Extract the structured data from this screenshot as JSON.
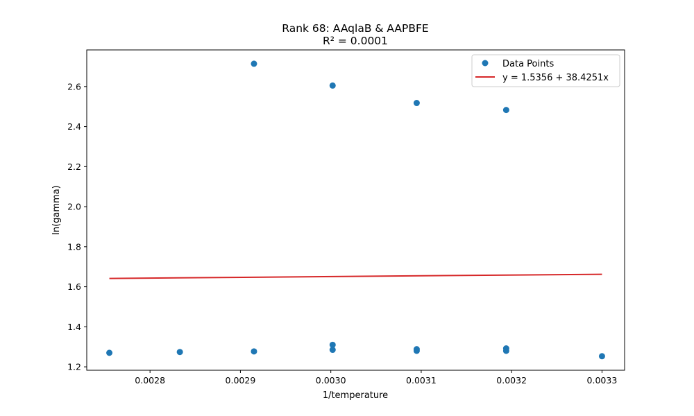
{
  "chart_data": {
    "type": "scatter",
    "title": "Rank 68: AAqlaB & AAPBFE",
    "subtitle": "R² = 0.0001",
    "xlabel": "1/temperature",
    "ylabel": "ln(gamma)",
    "xlim": [
      0.00273,
      0.003325
    ],
    "ylim": [
      1.183,
      2.783
    ],
    "xticks": [
      0.0028,
      0.0029,
      0.003,
      0.0031,
      0.0032,
      0.0033
    ],
    "xtick_labels": [
      "0.0028",
      "0.0029",
      "0.0030",
      "0.0031",
      "0.0032",
      "0.0033"
    ],
    "yticks": [
      1.2,
      1.4,
      1.6,
      1.8,
      2.0,
      2.2,
      2.4,
      2.6
    ],
    "ytick_labels": [
      "1.2",
      "1.4",
      "1.6",
      "1.8",
      "2.0",
      "2.2",
      "2.4",
      "2.6"
    ],
    "grid": false,
    "legend_position": "top-right",
    "series": [
      {
        "name": "Data Points",
        "kind": "scatter",
        "color": "#1f77b4",
        "points": [
          [
            0.002755,
            1.27
          ],
          [
            0.002833,
            1.274
          ],
          [
            0.002915,
            1.277
          ],
          [
            0.002915,
            2.714
          ],
          [
            0.003002,
            1.285
          ],
          [
            0.003002,
            1.31
          ],
          [
            0.003002,
            2.605
          ],
          [
            0.003095,
            1.28
          ],
          [
            0.003095,
            1.288
          ],
          [
            0.003095,
            2.518
          ],
          [
            0.003194,
            1.28
          ],
          [
            0.003194,
            1.292
          ],
          [
            0.003194,
            2.483
          ],
          [
            0.0033,
            1.253
          ]
        ]
      },
      {
        "name": "y = 1.5356 + 38.4251x",
        "kind": "line",
        "color": "#d62728",
        "intercept": 1.5356,
        "slope": 38.4251,
        "x_range": [
          0.002755,
          0.0033
        ]
      }
    ]
  }
}
